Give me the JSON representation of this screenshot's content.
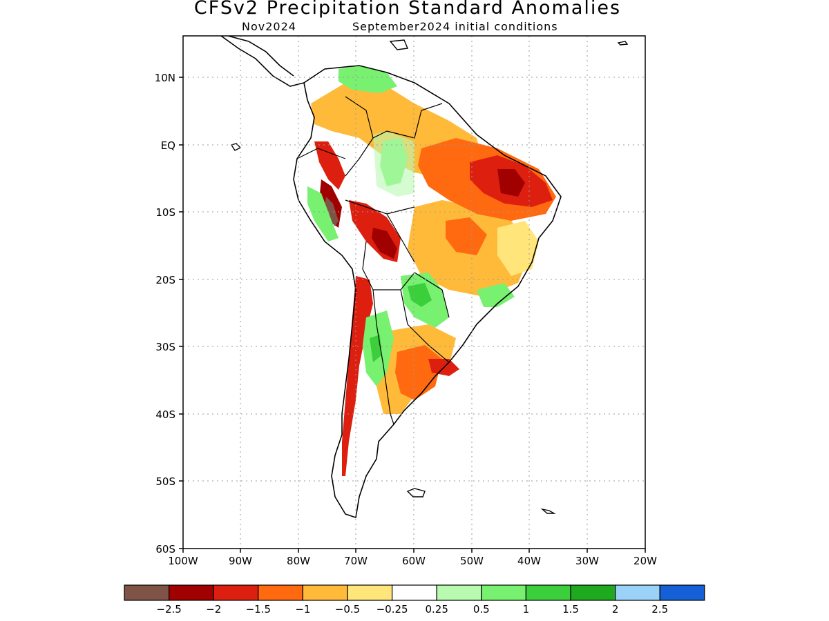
{
  "title": "CFSv2 Precipitation Standard Anomalies",
  "valid_month": "Nov2024",
  "initial_conditions": "September2024 initial conditions",
  "map": {
    "region": "South America",
    "lon_ticks": [
      "100W",
      "90W",
      "80W",
      "70W",
      "60W",
      "50W",
      "40W",
      "30W",
      "20W"
    ],
    "lat_ticks": [
      "10N",
      "EQ",
      "10S",
      "20S",
      "30S",
      "40S",
      "50S",
      "60S"
    ],
    "grid": "dotted"
  },
  "colorbar": {
    "colors": [
      "#7f5346",
      "#a00000",
      "#dd1f10",
      "#ff6a10",
      "#ffba3a",
      "#ffe57a",
      "#ffffff",
      "#b7fab0",
      "#78f070",
      "#3ccf3c",
      "#1ea91e",
      "#9ad3f7",
      "#1560d6"
    ],
    "labels": [
      "−2.5",
      "−2",
      "−1.5",
      "−1",
      "−0.5",
      "−0.25",
      "0.25",
      "0.5",
      "1",
      "1.5",
      "2",
      "2.5"
    ]
  },
  "legend_colors": {
    "brown": "#7f5346",
    "dark_red": "#a00000",
    "red": "#dd1f10",
    "orange": "#ff6a10",
    "light_orange": "#ffba3a",
    "yellow": "#ffe57a",
    "white": "#ffffff",
    "light_green": "#b7fab0",
    "green": "#78f070",
    "mid_green": "#3ccf3c",
    "dark_green": "#1ea91e",
    "light_blue": "#9ad3f7",
    "blue": "#1560d6"
  }
}
